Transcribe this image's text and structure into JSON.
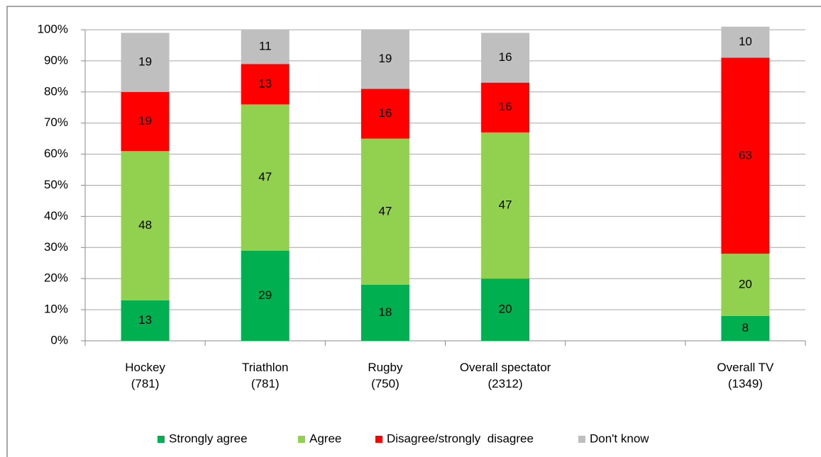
{
  "chart_data": {
    "type": "stacked_bar",
    "categories": [
      "Hockey\n(781)",
      "Triathlon\n(781)",
      "Rugby\n(750)",
      "Overall spectator\n(2312)",
      null,
      "Overall TV\n(1349)"
    ],
    "series": [
      {
        "name": "Strongly agree",
        "color": "#00b050",
        "values": [
          13,
          29,
          18,
          20,
          null,
          8
        ]
      },
      {
        "name": "Agree",
        "color": "#92d050",
        "values": [
          48,
          47,
          47,
          47,
          null,
          20
        ]
      },
      {
        "name": "Disagree/strongly  disagree",
        "color": "#ff0000",
        "values": [
          19,
          13,
          16,
          16,
          null,
          63
        ]
      },
      {
        "name": "Don't know",
        "color": "#bfbfbf",
        "values": [
          19,
          11,
          19,
          16,
          null,
          10
        ]
      }
    ],
    "ylim": [
      0,
      100
    ],
    "yticks": [
      {
        "value": 0,
        "label": "0%"
      },
      {
        "value": 10,
        "label": "10%"
      },
      {
        "value": 20,
        "label": "20%"
      },
      {
        "value": 30,
        "label": "30%"
      },
      {
        "value": 40,
        "label": "40%"
      },
      {
        "value": 50,
        "label": "50%"
      },
      {
        "value": 60,
        "label": "60%"
      },
      {
        "value": 70,
        "label": "70%"
      },
      {
        "value": 80,
        "label": "80%"
      },
      {
        "value": 90,
        "label": "90%"
      },
      {
        "value": 100,
        "label": "100%"
      }
    ],
    "grid": true,
    "legend": "bottom"
  }
}
